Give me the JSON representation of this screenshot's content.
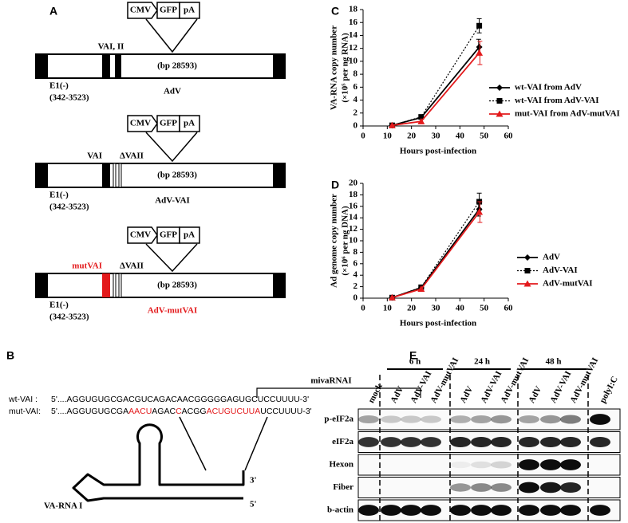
{
  "panel_a": {
    "label": "A",
    "constructs": [
      {
        "insert": [
          "CMV",
          "GFP",
          "pA"
        ],
        "va_labels": [
          "VAI, II"
        ],
        "size": "(bp 28593)",
        "e1": "E1(-)",
        "e1_range": "(342-3523)",
        "name": "AdV"
      },
      {
        "insert": [
          "CMV",
          "GFP",
          "pA"
        ],
        "va_labels": [
          "VAI",
          "ΔVAII"
        ],
        "size": "(bp 28593)",
        "e1": "E1(-)",
        "e1_range": "(342-3523)",
        "name": "AdV-VAI"
      },
      {
        "insert": [
          "CMV",
          "GFP",
          "pA"
        ],
        "va_labels": [
          "mutVAI",
          "ΔVAII"
        ],
        "size": "(bp 28593)",
        "e1": "E1(-)",
        "e1_range": "(342-3523)",
        "name": "AdV-mutVAI"
      }
    ]
  },
  "panel_b": {
    "label": "B",
    "bracket": "mivaRNAI",
    "sequences": [
      {
        "name": "wt-VAI : ",
        "segments": [
          {
            "text": "5'....AGGUGUGCGACGUCAGACAACGGGGGAGUGCUCCUUUU-3'",
            "color": "#000000"
          }
        ]
      },
      {
        "name": "mut-VAI: ",
        "segments": [
          {
            "text": "5'....AGGUGUGCGA",
            "color": "#000000"
          },
          {
            "text": "AACU",
            "color": "#e31a1c"
          },
          {
            "text": "AGAC",
            "color": "#000000"
          },
          {
            "text": "C",
            "color": "#e31a1c"
          },
          {
            "text": "ACGG",
            "color": "#000000"
          },
          {
            "text": "ACUGUCUUA",
            "color": "#e31a1c"
          },
          {
            "text": "UCCUUUU-3'",
            "color": "#000000"
          }
        ]
      }
    ],
    "rna_name": "VA-RNA I",
    "end3": "3'",
    "end5": "5'"
  },
  "chart_data": [
    {
      "type": "line",
      "panel": "C",
      "ylabel": [
        "VA-RNA copy number",
        "(×10⁵ per ng RNA)"
      ],
      "xlabel": "Hours post-infection",
      "x": [
        12,
        24,
        48
      ],
      "xlim": [
        0,
        60
      ],
      "xticks": [
        0,
        10,
        20,
        30,
        40,
        50,
        60
      ],
      "ylim": [
        0,
        18
      ],
      "yticks": [
        0,
        2,
        4,
        6,
        8,
        10,
        12,
        14,
        16,
        18
      ],
      "series": [
        {
          "name": "wt-VAI from AdV",
          "color": "#000000",
          "line_style": "solid",
          "marker": "diamond",
          "values": [
            0.1,
            1.3,
            12.2
          ],
          "errors": [
            null,
            null,
            1.2
          ]
        },
        {
          "name": "wt-VAI from AdV-VAI",
          "color": "#000000",
          "line_style": "dotted",
          "marker": "square",
          "values": [
            0.1,
            1.4,
            15.5
          ],
          "errors": [
            null,
            null,
            1.1
          ]
        },
        {
          "name": "mut-VAI from AdV-mutVAI",
          "color": "#e31a1c",
          "line_style": "solid",
          "marker": "triangle",
          "values": [
            0.1,
            0.7,
            11.3
          ],
          "errors": [
            null,
            null,
            1.8
          ]
        }
      ]
    },
    {
      "type": "line",
      "panel": "D",
      "ylabel": [
        "Ad genome copy number",
        "(×10⁶ per ng DNA)"
      ],
      "xlabel": "Hours post-infection",
      "x": [
        12,
        24,
        48
      ],
      "xlim": [
        0,
        60
      ],
      "xticks": [
        0,
        10,
        20,
        30,
        40,
        50,
        60
      ],
      "ylim": [
        0,
        20
      ],
      "yticks": [
        0,
        2,
        4,
        6,
        8,
        10,
        12,
        14,
        16,
        18,
        20
      ],
      "series": [
        {
          "name": "AdV",
          "color": "#000000",
          "line_style": "solid",
          "marker": "diamond",
          "values": [
            0.1,
            1.8,
            15.5
          ],
          "errors": [
            null,
            null,
            1.2
          ]
        },
        {
          "name": "AdV-VAI",
          "color": "#000000",
          "line_style": "dotted",
          "marker": "square",
          "values": [
            0.1,
            1.9,
            16.8
          ],
          "errors": [
            null,
            null,
            1.5
          ]
        },
        {
          "name": "AdV-mutVAI",
          "color": "#e31a1c",
          "line_style": "solid",
          "marker": "triangle",
          "values": [
            0.1,
            1.6,
            15.0
          ],
          "errors": [
            null,
            null,
            1.8
          ]
        }
      ]
    }
  ],
  "panel_e": {
    "label": "E",
    "timepoints": [
      "6 h",
      "24 h",
      "48 h"
    ],
    "lanes": [
      "mock",
      "AdV",
      "AdV-VAI",
      "AdV-mutVAI",
      "AdV",
      "AdV-VAI",
      "AdV-mutVAI",
      "AdV",
      "AdV-VAI",
      "AdV-mutVAI",
      "polyI:C"
    ],
    "rows": [
      "p-eIF2a",
      "eIF2a",
      "Hexon",
      "Fiber",
      "b-actin"
    ]
  }
}
